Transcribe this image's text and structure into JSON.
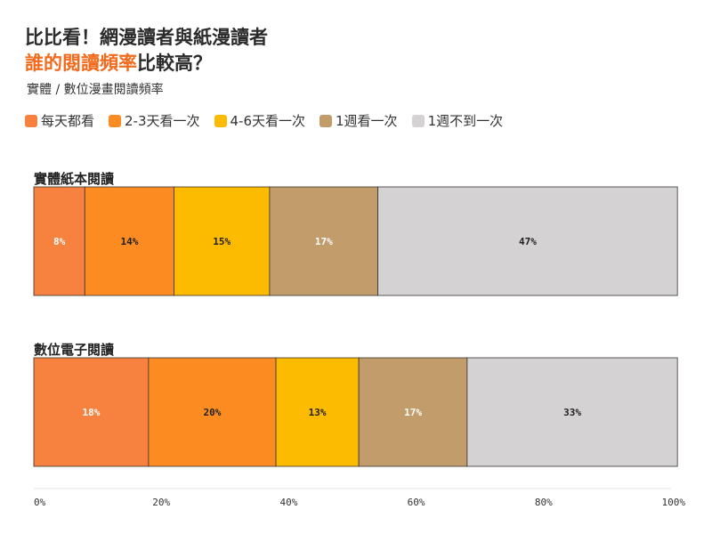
{
  "header": {
    "title_line1": "比比看！網漫讀者與紙漫讀者",
    "title_line2_highlight": "誰的閱讀頻率",
    "title_line2_rest": "比較高？",
    "subtitle": "實體 / 數位漫畫閱讀頻率",
    "highlight_color": "#f26b1d"
  },
  "chart_data": {
    "type": "bar",
    "orientation": "horizontal",
    "stacked": true,
    "categories": [
      "實體紙本閱讀",
      "數位電子閱讀"
    ],
    "series": [
      {
        "name": "每天都看",
        "color": "#f7813e",
        "label_color": "#ffffff",
        "values": [
          8,
          18
        ]
      },
      {
        "name": "2-3天看一次",
        "color": "#fc8c22",
        "label_color": "#222222",
        "values": [
          14,
          20
        ]
      },
      {
        "name": "4-6天看一次",
        "color": "#fdbb00",
        "label_color": "#222222",
        "values": [
          15,
          13
        ]
      },
      {
        "name": "1週看一次",
        "color": "#c39c6c",
        "label_color": "#ffffff",
        "values": [
          17,
          17
        ]
      },
      {
        "name": "1週不到一次",
        "color": "#d4d2d3",
        "label_color": "#222222",
        "values": [
          47,
          33
        ]
      }
    ],
    "value_labels": [
      [
        "8%",
        "14%",
        "15%",
        "17%",
        "47%"
      ],
      [
        "18%",
        "20%",
        "13%",
        "17%",
        "33%"
      ]
    ],
    "xlim": [
      0,
      100
    ],
    "xticks": [
      0,
      20,
      40,
      60,
      80,
      100
    ],
    "xtick_labels": [
      "0%",
      "20%",
      "40%",
      "60%",
      "80%",
      "100%"
    ],
    "legend_position": "top-left",
    "grid": false
  }
}
